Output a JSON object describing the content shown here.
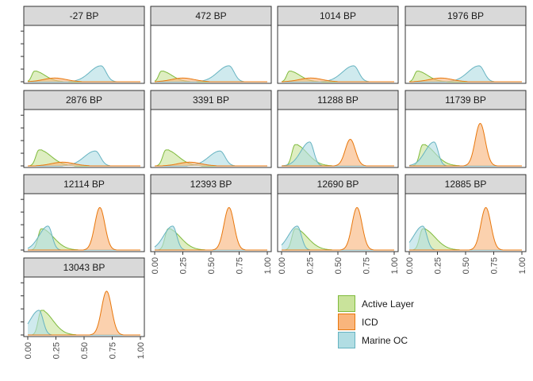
{
  "chart_data": {
    "type": "area",
    "subtype": "faceted density ridges",
    "xlim": [
      0,
      1
    ],
    "x_ticks": [
      "0.00",
      "0.25",
      "0.50",
      "0.75",
      "1.00"
    ],
    "y_axis": "unlabeled density",
    "legend_position": "bottom-right",
    "series": [
      {
        "name": "Active Layer",
        "fill": "#c9e39b",
        "stroke": "#7fba3c"
      },
      {
        "name": "ICD",
        "fill": "#f9b57c",
        "stroke": "#e8770c"
      },
      {
        "name": "Marine OC",
        "fill": "#b1dde3",
        "stroke": "#66b3c1"
      }
    ],
    "panels": [
      {
        "label": "-27 BP",
        "peaks": {
          "Active Layer": [
            0.06,
            0.2,
            0.3
          ],
          "ICD": [
            0.24,
            0.07,
            1.0
          ],
          "Marine OC": [
            0.65,
            0.3,
            0.5
          ]
        }
      },
      {
        "label": "472 BP",
        "peaks": {
          "Active Layer": [
            0.06,
            0.2,
            0.3
          ],
          "ICD": [
            0.25,
            0.07,
            1.0
          ],
          "Marine OC": [
            0.66,
            0.3,
            0.5
          ]
        }
      },
      {
        "label": "1014 BP",
        "peaks": {
          "Active Layer": [
            0.07,
            0.2,
            0.3
          ],
          "ICD": [
            0.26,
            0.07,
            1.0
          ],
          "Marine OC": [
            0.64,
            0.3,
            0.5
          ]
        }
      },
      {
        "label": "1976 BP",
        "peaks": {
          "Active Layer": [
            0.07,
            0.2,
            0.3
          ],
          "ICD": [
            0.28,
            0.07,
            1.0
          ],
          "Marine OC": [
            0.62,
            0.3,
            0.5
          ]
        }
      },
      {
        "label": "2876 BP",
        "peaks": {
          "Active Layer": [
            0.1,
            0.3,
            0.35
          ],
          "ICD": [
            0.31,
            0.07,
            1.0
          ],
          "Marine OC": [
            0.6,
            0.28,
            0.5
          ]
        }
      },
      {
        "label": "3391 BP",
        "peaks": {
          "Active Layer": [
            0.1,
            0.3,
            0.35
          ],
          "ICD": [
            0.31,
            0.07,
            1.0
          ],
          "Marine OC": [
            0.58,
            0.28,
            0.5
          ]
        }
      },
      {
        "label": "11288 BP",
        "peaks": {
          "Active Layer": [
            0.12,
            0.4,
            0.35
          ],
          "ICD": [
            0.61,
            0.5,
            0.45
          ],
          "Marine OC": [
            0.25,
            0.45,
            0.4
          ]
        }
      },
      {
        "label": "11739 BP",
        "peaks": {
          "Active Layer": [
            0.12,
            0.4,
            0.35
          ],
          "ICD": [
            0.63,
            0.8,
            0.45
          ],
          "Marine OC": [
            0.22,
            0.45,
            0.4
          ]
        }
      },
      {
        "label": "12114 BP",
        "peaks": {
          "Active Layer": [
            0.12,
            0.4,
            0.35
          ],
          "ICD": [
            0.64,
            0.8,
            0.45
          ],
          "Marine OC": [
            0.18,
            0.45,
            0.4
          ]
        }
      },
      {
        "label": "12393 BP",
        "peaks": {
          "Active Layer": [
            0.12,
            0.4,
            0.35
          ],
          "ICD": [
            0.66,
            0.8,
            0.45
          ],
          "Marine OC": [
            0.16,
            0.45,
            0.4
          ]
        }
      },
      {
        "label": "12690 BP",
        "peaks": {
          "Active Layer": [
            0.12,
            0.4,
            0.35
          ],
          "ICD": [
            0.67,
            0.8,
            0.45
          ],
          "Marine OC": [
            0.14,
            0.45,
            0.4
          ]
        }
      },
      {
        "label": "12885 BP",
        "peaks": {
          "Active Layer": [
            0.12,
            0.4,
            0.35
          ],
          "ICD": [
            0.68,
            0.8,
            0.45
          ],
          "Marine OC": [
            0.12,
            0.45,
            0.4
          ]
        }
      },
      {
        "label": "13043 BP",
        "peaks": {
          "Active Layer": [
            0.12,
            0.45,
            0.33
          ],
          "ICD": [
            0.7,
            0.8,
            0.45
          ],
          "Marine OC": [
            0.1,
            0.45,
            0.4
          ]
        }
      }
    ]
  }
}
